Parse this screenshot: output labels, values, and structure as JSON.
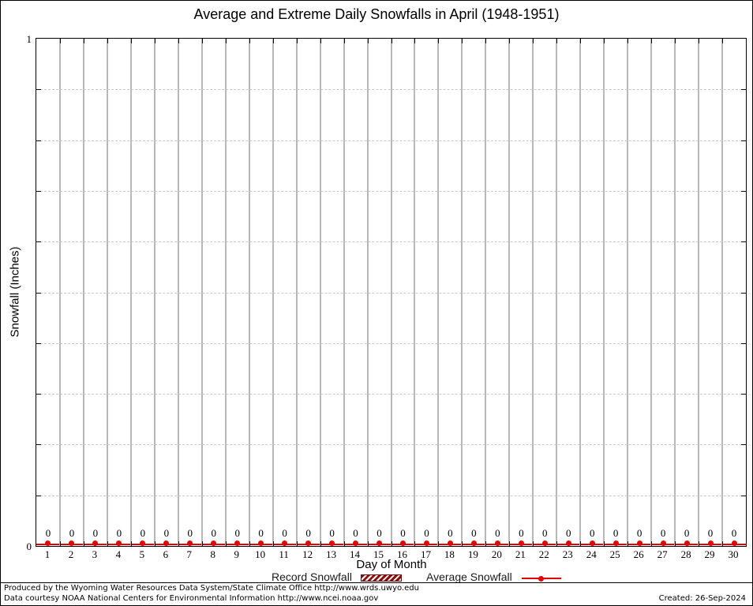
{
  "title": "Average and Extreme Daily Snowfalls in April (1948-1951)",
  "axes": {
    "y_label": "Snowfall (Inches)",
    "x_label": "Day of Month",
    "y_max_tick": "1",
    "y_min_tick": "0"
  },
  "legend": {
    "record_label": "Record Snowfall",
    "average_label": "Average Snowfall"
  },
  "footer": {
    "line1": "Produced by the Wyoming Water Resources Data System/State Climate Office http://www.wrds.uwyo.edu",
    "line2": "Data courtesy NOAA National Centers for Environmental Information http://www.ncei.noaa.gov",
    "created": "Created: 26-Sep-2024"
  },
  "colors": {
    "average_line": "#e60000",
    "record_fill": "#8b1212",
    "grid_vertical": "#b8b8b8",
    "grid_horizontal": "#c9c9c9",
    "axis": "#000000"
  },
  "chart_data": {
    "type": "line",
    "title": "Average and Extreme Daily Snowfalls in April (1948-1951)",
    "xlabel": "Day of Month",
    "ylabel": "Snowfall (Inches)",
    "x": [
      1,
      2,
      3,
      4,
      5,
      6,
      7,
      8,
      9,
      10,
      11,
      12,
      13,
      14,
      15,
      16,
      17,
      18,
      19,
      20,
      21,
      22,
      23,
      24,
      25,
      26,
      27,
      28,
      29,
      30
    ],
    "series": [
      {
        "name": "Record Snowfall",
        "type": "bar",
        "values": [
          0,
          0,
          0,
          0,
          0,
          0,
          0,
          0,
          0,
          0,
          0,
          0,
          0,
          0,
          0,
          0,
          0,
          0,
          0,
          0,
          0,
          0,
          0,
          0,
          0,
          0,
          0,
          0,
          0,
          0
        ]
      },
      {
        "name": "Average Snowfall",
        "type": "line-with-markers",
        "values": [
          0,
          0,
          0,
          0,
          0,
          0,
          0,
          0,
          0,
          0,
          0,
          0,
          0,
          0,
          0,
          0,
          0,
          0,
          0,
          0,
          0,
          0,
          0,
          0,
          0,
          0,
          0,
          0,
          0,
          0
        ]
      }
    ],
    "point_labels": [
      "0",
      "0",
      "0",
      "0",
      "0",
      "0",
      "0",
      "0",
      "0",
      "0",
      "0",
      "0",
      "0",
      "0",
      "0",
      "0",
      "0",
      "0",
      "0",
      "0",
      "0",
      "0",
      "0",
      "0",
      "0",
      "0",
      "0",
      "0",
      "0",
      "0"
    ],
    "ylim": [
      0,
      1
    ],
    "xlim": [
      0.5,
      30.5
    ],
    "y_major_ticks": [
      0,
      1
    ],
    "y_minor_tick_step": 0.1,
    "grid": {
      "vertical": "solid gray lines at half-day boundaries (1.5 … 29.5)",
      "horizontal": "dashed light-gray lines every 0.1"
    },
    "legend_position": "bottom-center below x-axis label"
  }
}
